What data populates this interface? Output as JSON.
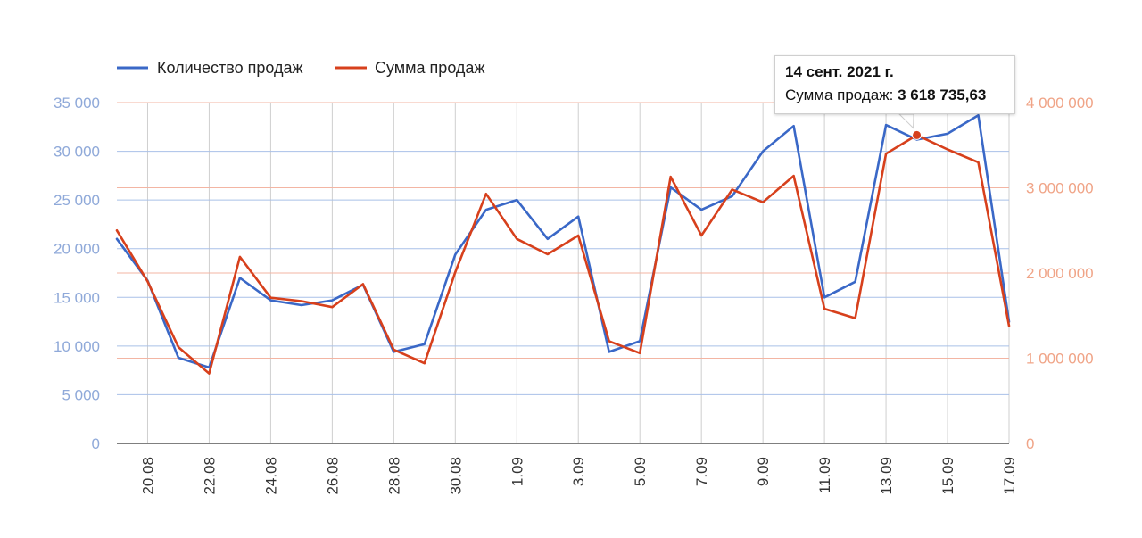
{
  "chart_data": {
    "type": "line",
    "legend_position": "top-left",
    "grid": true,
    "x": [
      "19.08",
      "20.08",
      "21.08",
      "22.08",
      "23.08",
      "24.08",
      "25.08",
      "26.08",
      "27.08",
      "28.08",
      "29.08",
      "30.08",
      "31.08",
      "1.09",
      "2.09",
      "3.09",
      "4.09",
      "5.09",
      "6.09",
      "7.09",
      "8.09",
      "9.09",
      "10.09",
      "11.09",
      "12.09",
      "13.09",
      "14.09",
      "15.09",
      "16.09",
      "17.09"
    ],
    "x_tick_labels": [
      "20.08",
      "22.08",
      "24.08",
      "26.08",
      "28.08",
      "30.08",
      "1.09",
      "3.09",
      "5.09",
      "7.09",
      "9.09",
      "11.09",
      "13.09",
      "15.09",
      "17.09"
    ],
    "y_left": {
      "ylim": [
        0,
        35000
      ],
      "tick_labels": [
        "0",
        "5 000",
        "10 000",
        "15 000",
        "20 000",
        "25 000",
        "30 000",
        "35 000"
      ]
    },
    "y_right": {
      "ylim": [
        0,
        4000000
      ],
      "tick_labels": [
        "0",
        "1 000 000",
        "2 000 000",
        "3 000 000",
        "4 000 000"
      ]
    },
    "series": [
      {
        "name": "Количество продаж",
        "axis": "left",
        "color": "#3a68c7",
        "values": [
          21000,
          16700,
          8800,
          7800,
          17000,
          14700,
          14200,
          14700,
          16300,
          9400,
          10200,
          19400,
          24000,
          25000,
          21000,
          23300,
          9400,
          10500,
          26300,
          24000,
          25400,
          30000,
          32600,
          15000,
          16600,
          32700,
          31200,
          31800,
          33700,
          12500
        ]
      },
      {
        "name": "Сумма продаж",
        "axis": "right",
        "color": "#d7401c",
        "values": [
          2500000,
          1900000,
          1130000,
          820000,
          2190000,
          1710000,
          1670000,
          1600000,
          1870000,
          1100000,
          940000,
          2010000,
          2930000,
          2400000,
          2220000,
          2440000,
          1200000,
          1060000,
          3130000,
          2440000,
          2980000,
          2830000,
          3140000,
          1580000,
          1470000,
          3400000,
          3618735.63,
          3450000,
          3300000,
          1380000
        ]
      }
    ],
    "tooltip": {
      "title": "14 сент. 2021 г.",
      "label": "Сумма продаж:",
      "value": "3 618 735,63",
      "point_index": 26,
      "series_index": 1
    },
    "colors": {
      "left_axis_text": "#8fa9d9",
      "right_axis_text": "#f0a487",
      "grid_left": "#a9c0e8",
      "grid_right": "#f3b5a3",
      "grid_vertical": "#cfcfcf"
    }
  }
}
